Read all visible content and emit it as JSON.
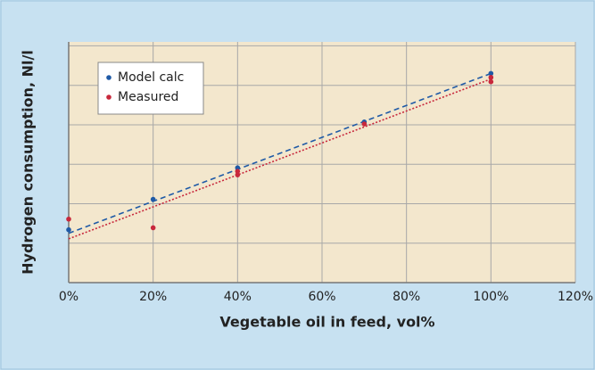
{
  "chart_data": {
    "type": "scatter",
    "xlabel": "Vegetable oil in feed, vol%",
    "ylabel": "Hydrogen consumption, Nl/l",
    "xlim": [
      0,
      120
    ],
    "xticks": [
      {
        "value": 0,
        "label": "0%"
      },
      {
        "value": 20,
        "label": "20%"
      },
      {
        "value": 40,
        "label": "40%"
      },
      {
        "value": 60,
        "label": "60%"
      },
      {
        "value": 80,
        "label": "80%"
      },
      {
        "value": 100,
        "label": "100%"
      },
      {
        "value": 120,
        "label": "120%"
      }
    ],
    "ylim": [
      0,
      6.1
    ],
    "yticks": [
      0,
      1,
      2,
      3,
      4,
      5,
      6
    ],
    "grid": true,
    "legend": "upper left",
    "series": [
      {
        "name": "Model calc",
        "color": "#1f5aa6",
        "x": [
          0,
          20,
          40,
          70,
          100
        ],
        "values": [
          1.34,
          2.11,
          2.91,
          4.07,
          5.3
        ],
        "trendline": {
          "x": [
            0,
            100
          ],
          "values": [
            1.25,
            5.3
          ],
          "style": "dashed"
        }
      },
      {
        "name": "Measured",
        "color": "#c8283c",
        "x": [
          0,
          20,
          40,
          40,
          70,
          100,
          100
        ],
        "values": [
          1.61,
          1.39,
          2.73,
          2.82,
          4.02,
          5.2,
          5.09
        ],
        "trendline": {
          "x": [
            0,
            100
          ],
          "values": [
            1.11,
            5.16
          ],
          "style": "dotted"
        }
      }
    ]
  }
}
